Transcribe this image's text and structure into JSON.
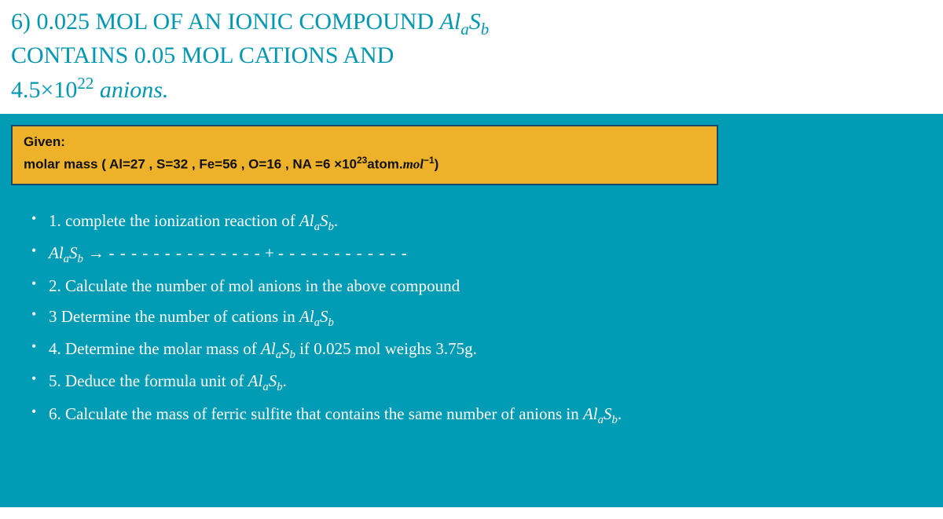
{
  "colors": {
    "teal": "#0097b2",
    "content_bg": "#009bb4",
    "given_bg": "#edb22a",
    "given_border": "#174a66",
    "text_white": "#ffffff",
    "text_black": "#111111"
  },
  "header": {
    "line1_a": "6) 0.025 MOL OF AN IONIC COMPOUND ",
    "line1_formula_base1": "Al",
    "line1_formula_sub1": "a",
    "line1_formula_base2": "S",
    "line1_formula_sub2": "b",
    "line2": "CONTAINS 0.05 MOL CATIONS AND",
    "line3_a": "4.5×10",
    "line3_sup": "22",
    "line3_b": " anions."
  },
  "given": {
    "label": "Given:",
    "text_a": "molar mass ( Al=27    , S=32 ,   Fe=56 , O=16  ,  NA =6 ×10",
    "text_sup": "23",
    "text_b": "atom.",
    "text_c": "mol",
    "text_d": "−1",
    "text_e": ")"
  },
  "questions": {
    "q1_a": "1. complete the ionization reaction of ",
    "q1_formula": "Al",
    "q1_sub1": "a",
    "q1_formula2": "S",
    "q1_sub2": "b",
    "q1_dot": ".",
    "q1b_formula": "Al",
    "q1b_sub1": "a",
    "q1b_formula2": "S",
    "q1b_sub2": "b",
    "q1b_arrow": " → ",
    "q1b_dashes1": "- - - - - - - - - - - - - -",
    "q1b_plus": "  +  ",
    "q1b_dashes2": "- - - - - - - - - - - -",
    "q2": "2. Calculate the number of mol anions in the above compound",
    "q3_a": "3 Determine the number of cations in ",
    "q3_formula": "Al",
    "q3_sub1": "a",
    "q3_formula2": "S",
    "q3_sub2": "b",
    "q4_a": "4. Determine the molar mass of ",
    "q4_formula": "Al",
    "q4_sub1": "a",
    "q4_formula2": "S",
    "q4_sub2": "b",
    "q4_b": " if 0.025 mol weighs 3.75g.",
    "q5_a": "5. Deduce the formula unit of ",
    "q5_formula": "Al",
    "q5_sub1": "a",
    "q5_formula2": "S",
    "q5_sub2": "b",
    "q5_dot": ".",
    "q6_a": "6. Calculate the mass of ferric sulfite that contains the same number of anions in ",
    "q6_formula": "Al",
    "q6_sub1": "a",
    "q6_formula2": "S",
    "q6_sub2": "b",
    "q6_dot": "."
  }
}
